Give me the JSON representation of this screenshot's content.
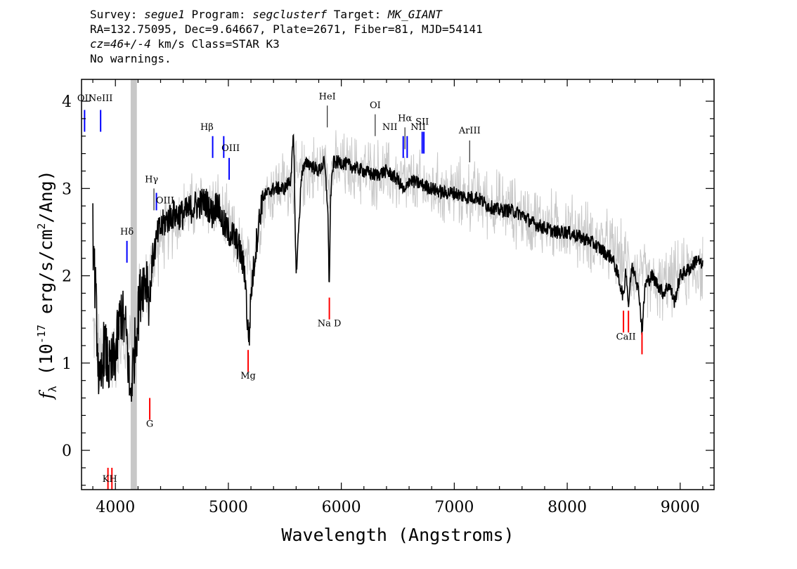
{
  "header": {
    "survey_prefix": "Survey: ",
    "survey": "segue1",
    "program_prefix": " Program: ",
    "program": "segclusterf",
    "target_prefix": " Target: ",
    "target": "MK_GIANT",
    "line2": "RA=132.75095, Dec=9.64667, Plate=2671, Fiber=81, MJD=54141",
    "cz": "cz=46+/-4",
    "line3_rest": " km/s Class=STAR K3",
    "line4": "No warnings."
  },
  "chart_data": {
    "type": "line",
    "xlabel": "Wavelength (Angstroms)",
    "ylabel": "f_λ (10^-17 erg/s/cm^2/Ang)",
    "xlim": [
      3700,
      9300
    ],
    "ylim": [
      -0.45,
      4.25
    ],
    "x_ticks": [
      4000,
      5000,
      6000,
      7000,
      8000,
      9000
    ],
    "y_ticks": [
      0,
      1,
      2,
      3,
      4
    ],
    "series": [
      {
        "name": "",
        "color": "#000000",
        "x": [
          3800,
          3830,
          3860,
          3900,
          3950,
          4000,
          4050,
          4100,
          4130,
          4180,
          4230,
          4280,
          4300,
          4330,
          4380,
          4430,
          4500,
          4600,
          4700,
          4800,
          4860,
          4900,
          4950,
          5000,
          5050,
          5100,
          5150,
          5170,
          5185,
          5200,
          5250,
          5300,
          5400,
          5500,
          5550,
          5577,
          5600,
          5650,
          5700,
          5800,
          5850,
          5880,
          5893,
          5905,
          5930,
          6000,
          6100,
          6200,
          6300,
          6400,
          6500,
          6563,
          6600,
          6700,
          6800,
          6900,
          7000,
          7100,
          7200,
          7300,
          7400,
          7500,
          7600,
          7700,
          7800,
          7900,
          8000,
          8100,
          8200,
          8300,
          8400,
          8450,
          8498,
          8520,
          8542,
          8570,
          8600,
          8640,
          8662,
          8690,
          8750,
          8800,
          8850,
          8900,
          8950,
          9000,
          9050,
          9100,
          9150,
          9200
        ],
        "values": [
          2.5,
          1.6,
          0.6,
          1.2,
          0.9,
          1.1,
          1.6,
          1.3,
          0.6,
          1.3,
          1.9,
          2.0,
          1.7,
          2.2,
          2.5,
          2.6,
          2.7,
          2.7,
          2.8,
          2.85,
          2.7,
          2.85,
          2.6,
          2.5,
          2.45,
          2.3,
          2.0,
          1.4,
          1.3,
          1.8,
          2.4,
          2.9,
          3.0,
          3.0,
          3.1,
          3.6,
          2.0,
          3.2,
          3.3,
          3.2,
          3.3,
          2.8,
          1.85,
          2.9,
          3.3,
          3.3,
          3.25,
          3.2,
          3.15,
          3.2,
          3.1,
          2.95,
          3.1,
          3.05,
          3.0,
          2.95,
          2.95,
          2.9,
          2.9,
          2.8,
          2.75,
          2.75,
          2.7,
          2.6,
          2.55,
          2.5,
          2.5,
          2.45,
          2.4,
          2.3,
          2.2,
          2.0,
          1.75,
          2.1,
          1.65,
          2.1,
          2.05,
          1.75,
          1.35,
          1.9,
          2.0,
          1.9,
          1.8,
          1.9,
          1.7,
          2.0,
          2.05,
          2.1,
          2.2,
          2.1
        ]
      },
      {
        "name": "",
        "color": "#c8c8c8",
        "x": [
          3800,
          3900,
          4000,
          4100,
          4200,
          4300,
          4400,
          4500,
          4600,
          4700,
          4800,
          4900,
          5000,
          5100,
          5200,
          5300,
          5400,
          5500,
          5600,
          5700,
          5800,
          5900,
          6000,
          6200,
          6400,
          6600,
          6800,
          7000,
          7200,
          7400,
          7600,
          7800,
          8000,
          8200,
          8400,
          8600,
          8800,
          9000,
          9200
        ],
        "values": [
          1.4,
          1.0,
          1.1,
          1.2,
          1.7,
          2.0,
          2.4,
          2.6,
          2.7,
          2.8,
          2.85,
          2.8,
          2.55,
          2.3,
          2.0,
          2.85,
          3.0,
          3.05,
          3.1,
          3.2,
          3.25,
          3.2,
          3.25,
          3.2,
          3.15,
          3.05,
          3.0,
          2.95,
          2.9,
          2.8,
          2.7,
          2.6,
          2.55,
          2.45,
          2.3,
          2.05,
          1.85,
          2.0,
          2.1
        ],
        "spread": 0.35
      }
    ],
    "masked_band": [
      4135,
      4190
    ],
    "lines": [
      {
        "label": "OII",
        "x": 3727,
        "y0": 3.9,
        "y1": 3.65,
        "color": "#0000ff"
      },
      {
        "label": "NeIII",
        "x": 3869,
        "y0": 3.9,
        "y1": 3.65,
        "color": "#0000ff"
      },
      {
        "label": "Hδ",
        "x": 4102,
        "y0": 2.4,
        "y1": 2.15,
        "color": "#0000ff"
      },
      {
        "label": "Hγ",
        "x": 4341,
        "y0": 3.0,
        "y1": 2.75,
        "color": "#000000"
      },
      {
        "label": "OIII",
        "x": 4363,
        "y0": 2.95,
        "y1": 2.75,
        "color": "#0000ff"
      },
      {
        "label": "Hβ",
        "x": 4861,
        "y0": 3.6,
        "y1": 3.35,
        "color": "#0000ff"
      },
      {
        "label": "OIII",
        "x": 4959,
        "y0": 3.6,
        "y1": 3.35,
        "color": "#0000ff"
      },
      {
        "label": "OIII",
        "x": 5007,
        "y0": 3.35,
        "y1": 3.1,
        "color": "#0000ff"
      },
      {
        "label": "HeI",
        "x": 5876,
        "y0": 3.95,
        "y1": 3.7,
        "color": "#000000"
      },
      {
        "label": "OI",
        "x": 6300,
        "y0": 3.85,
        "y1": 3.6,
        "color": "#000000"
      },
      {
        "label": "NII",
        "x": 6548,
        "y0": 3.6,
        "y1": 3.35,
        "color": "#0000ff"
      },
      {
        "label": "Hα",
        "x": 6563,
        "y0": 3.7,
        "y1": 3.45,
        "color": "#000000"
      },
      {
        "label": "NII",
        "x": 6583,
        "y0": 3.6,
        "y1": 3.35,
        "color": "#0000ff"
      },
      {
        "label": "SII",
        "x": 6716,
        "y0": 3.65,
        "y1": 3.4,
        "color": "#0000ff"
      },
      {
        "label": "SII",
        "x": 6731,
        "y0": 3.65,
        "y1": 3.4,
        "color": "#0000ff"
      },
      {
        "label": "ArIII",
        "x": 7136,
        "y0": 3.55,
        "y1": 3.3,
        "color": "#000000"
      },
      {
        "label": "K",
        "x": 3934,
        "y0": -0.2,
        "y1": -0.45,
        "color": "#ff0000"
      },
      {
        "label": "H",
        "x": 3969,
        "y0": -0.2,
        "y1": -0.45,
        "color": "#ff0000"
      },
      {
        "label": "G",
        "x": 4304,
        "y0": 0.6,
        "y1": 0.35,
        "color": "#ff0000"
      },
      {
        "label": "Mg",
        "x": 5175,
        "y0": 1.15,
        "y1": 0.9,
        "color": "#ff0000"
      },
      {
        "label": "Na D",
        "x": 5894,
        "y0": 1.75,
        "y1": 1.5,
        "color": "#ff0000"
      },
      {
        "label": "CaII",
        "x": 8498,
        "y0": 1.6,
        "y1": 1.35,
        "color": "#ff0000"
      },
      {
        "label": "CaII",
        "x": 8542,
        "y0": 1.6,
        "y1": 1.35,
        "color": "#ff0000"
      },
      {
        "label": "CaII",
        "x": 8662,
        "y0": 1.35,
        "y1": 1.1,
        "color": "#ff0000"
      }
    ],
    "line_labels": [
      {
        "text": "OII",
        "x": 3727,
        "y": 4.0
      },
      {
        "text": "NeIII",
        "x": 3869,
        "y": 4.0
      },
      {
        "text": "Hδ",
        "x": 4102,
        "y": 2.47
      },
      {
        "text": "Hγ",
        "x": 4320,
        "y": 3.07
      },
      {
        "text": "OIII",
        "x": 4440,
        "y": 2.83
      },
      {
        "text": "Hβ",
        "x": 4810,
        "y": 3.67
      },
      {
        "text": "OIII",
        "x": 5020,
        "y": 3.43
      },
      {
        "text": "HeI",
        "x": 5876,
        "y": 4.02
      },
      {
        "text": "OI",
        "x": 6300,
        "y": 3.92
      },
      {
        "text": "NII",
        "x": 6430,
        "y": 3.67
      },
      {
        "text": "Hα",
        "x": 6563,
        "y": 3.77
      },
      {
        "text": "NII",
        "x": 6680,
        "y": 3.67
      },
      {
        "text": "SII",
        "x": 6716,
        "y": 3.73
      },
      {
        "text": "ArIII",
        "x": 7136,
        "y": 3.63
      },
      {
        "text": "KH",
        "x": 3950,
        "y": -0.36
      },
      {
        "text": "G",
        "x": 4304,
        "y": 0.27
      },
      {
        "text": "Mg",
        "x": 5175,
        "y": 0.82
      },
      {
        "text": "Na D",
        "x": 5894,
        "y": 1.42
      },
      {
        "text": "CaII",
        "x": 8520,
        "y": 1.27
      }
    ]
  }
}
